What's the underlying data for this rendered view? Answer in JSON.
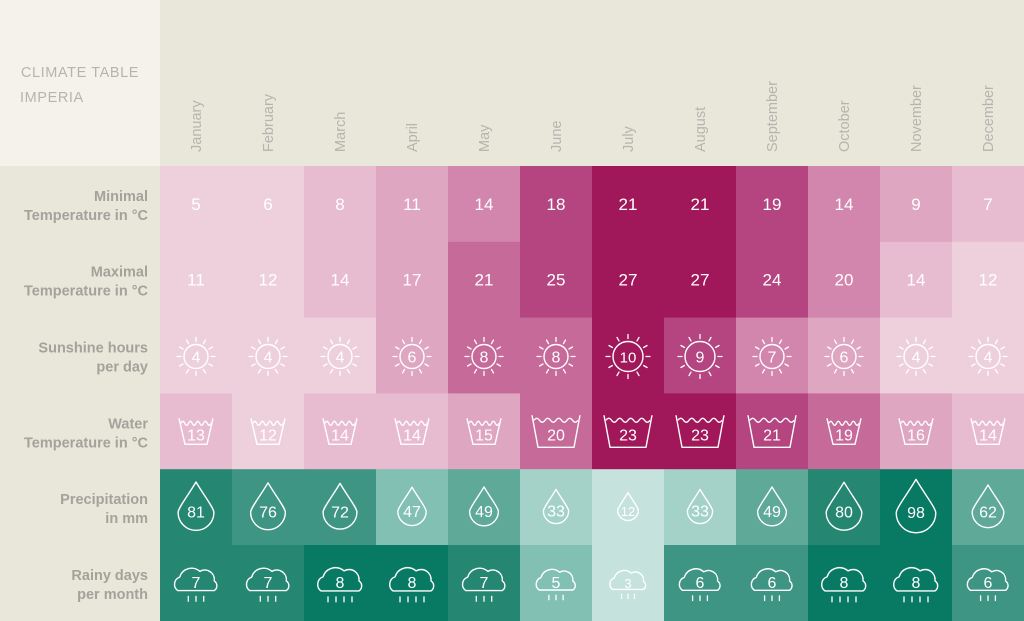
{
  "chart_data": {
    "type": "table",
    "title": "CLIMATE TABLE",
    "subtitle": "IMPERIA",
    "months": [
      "January",
      "February",
      "March",
      "April",
      "May",
      "June",
      "July",
      "August",
      "September",
      "October",
      "November",
      "December"
    ],
    "rows": [
      {
        "label_line1": "Minimal",
        "label_line2": "Temperature in °C",
        "icon": "none",
        "palette": "pink",
        "values": [
          5,
          6,
          8,
          11,
          14,
          18,
          21,
          21,
          19,
          14,
          9,
          7
        ]
      },
      {
        "label_line1": "Maximal",
        "label_line2": "Temperature in °C",
        "icon": "none",
        "palette": "pink",
        "values": [
          11,
          12,
          14,
          17,
          21,
          25,
          27,
          27,
          24,
          20,
          14,
          12
        ]
      },
      {
        "label_line1": "Sunshine hours",
        "label_line2": "per day",
        "icon": "sun-icon",
        "palette": "pink",
        "values": [
          4,
          4,
          4,
          6,
          8,
          8,
          10,
          9,
          7,
          6,
          4,
          4
        ]
      },
      {
        "label_line1": "Water",
        "label_line2": "Temperature in °C",
        "icon": "basin-icon",
        "palette": "pink",
        "values": [
          13,
          12,
          14,
          14,
          15,
          20,
          23,
          23,
          21,
          19,
          16,
          14
        ]
      },
      {
        "label_line1": "Precipitation",
        "label_line2": "in mm",
        "icon": "drop-icon",
        "palette": "green",
        "values": [
          81,
          76,
          72,
          47,
          49,
          33,
          12,
          33,
          49,
          80,
          98,
          62
        ]
      },
      {
        "label_line1": "Rainy days",
        "label_line2": "per month",
        "icon": "rain-cloud-icon",
        "palette": "green",
        "values": [
          7,
          7,
          8,
          8,
          7,
          5,
          3,
          6,
          6,
          8,
          8,
          6
        ]
      }
    ]
  },
  "colors": {
    "page_background": "#e9e7da",
    "title_block": "#f4f2ea",
    "header_text": "#b5b5ad",
    "label_text": "#a3a39b",
    "pink_palette": [
      "#eed0dc",
      "#e8bcd0",
      "#dea6c0",
      "#d286ad",
      "#c66a99",
      "#b44580",
      "#a1185a"
    ],
    "green_palette": [
      "#c5e2dc",
      "#a4d2c8",
      "#82c0b3",
      "#5ea998",
      "#3f9583",
      "#258671",
      "#087a63"
    ]
  }
}
